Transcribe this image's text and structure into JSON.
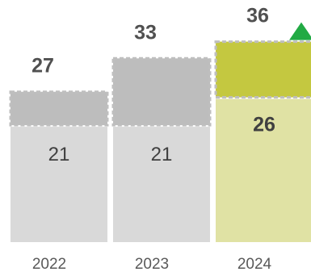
{
  "chart_data": {
    "type": "bar",
    "stacked": true,
    "categories": [
      "2022",
      "2023",
      "2024"
    ],
    "series": [
      {
        "values": [
          21,
          21,
          26
        ]
      },
      {
        "values": [
          6,
          12,
          10
        ]
      }
    ],
    "inner_labels": [
      "21",
      "21",
      "26"
    ],
    "total_labels": [
      "27",
      "33",
      "36"
    ],
    "totals": [
      27,
      33,
      36
    ],
    "upper_segment_style": "dashed-outline",
    "trend_marker": {
      "category": "2024",
      "direction": "up",
      "color": "#22aa44"
    },
    "colors": {
      "base": "#d9d9d9",
      "upper": "#bdbdbd",
      "highlight_base": "#e0e2a4",
      "highlight_upper": "#c4c840",
      "outline": "#bfbfbf",
      "value_text": "#404040",
      "total_text": "#505050",
      "axis_text": "#595959"
    },
    "highlight_index": 2,
    "ylim": [
      0,
      36
    ],
    "grid": false,
    "legend": "none"
  }
}
